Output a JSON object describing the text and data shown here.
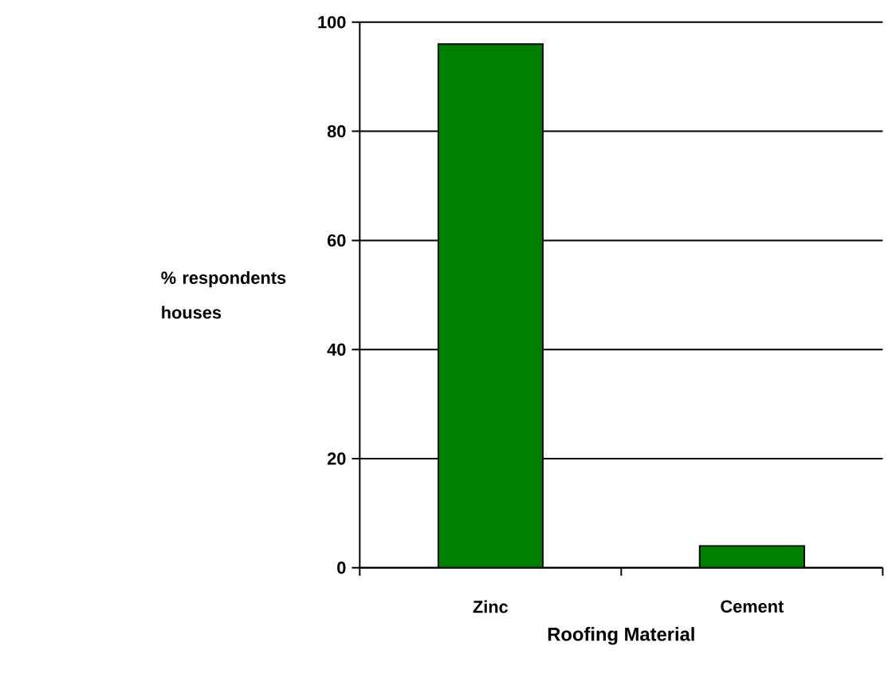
{
  "chart_data": {
    "type": "bar",
    "xlabel": "Roofing Material",
    "ylabel": "% respondents houses",
    "categories": [
      "Zinc",
      "Cement"
    ],
    "values": [
      96,
      4
    ],
    "color": "#008000",
    "ylim": [
      0,
      100
    ],
    "yticks": [
      0,
      20,
      40,
      60,
      80,
      100
    ],
    "grid": "y"
  }
}
